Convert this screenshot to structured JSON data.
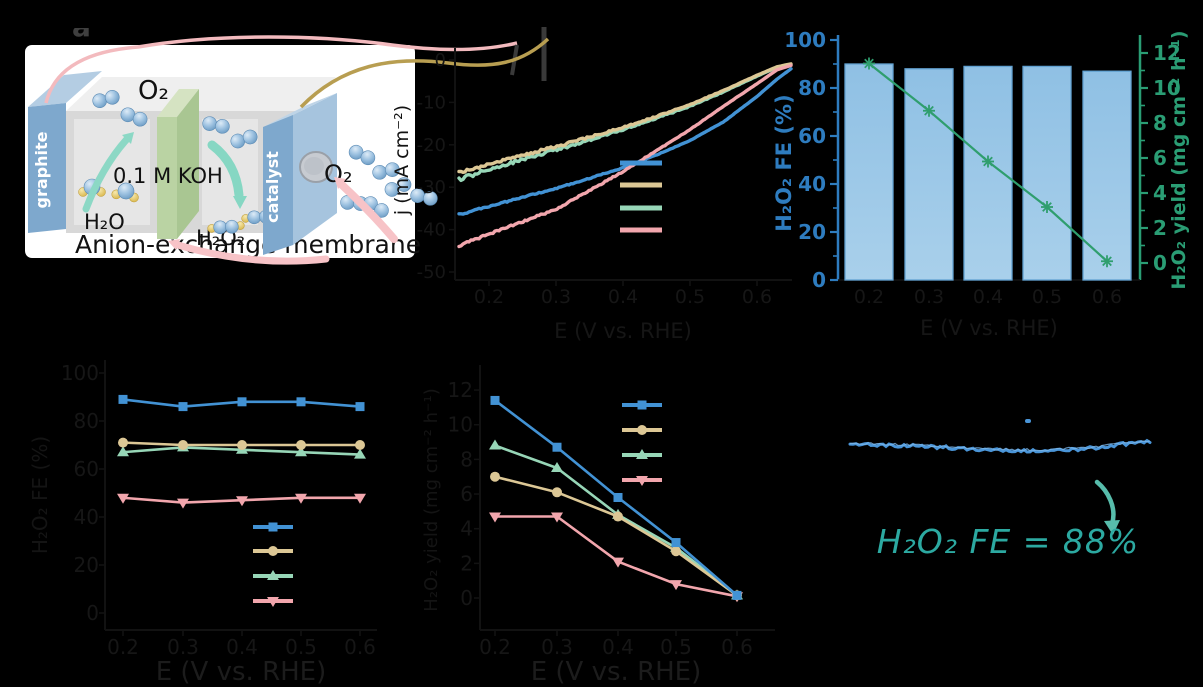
{
  "figure": {
    "panel_label_a": "a",
    "background": "#000000"
  },
  "panel_a": {
    "electrode_left": "graphite",
    "electrode_right": "catalyst",
    "gas_top": "O₂",
    "gas_inlet": "O₂",
    "electrolyte": "0.1 M KOH",
    "water": "H₂O",
    "product": "H₂O₂",
    "membrane_label": "Anion-exchange membrane",
    "colors": {
      "electrode_front": "#7ea8cd",
      "electrode_top": "#b4cde3",
      "electrode_side": "#a6c4de",
      "membrane_front": "#bad3a3",
      "chamber": "#d8d8d8",
      "wire_left": "#f3babe",
      "wire_right": "#b89e51",
      "arrow_teal": "#8cd8c5",
      "arrow_pink": "#f7c3c7"
    }
  },
  "chart_data": [
    {
      "id": "b",
      "type": "line",
      "xlabel": "E (V vs. RHE)",
      "ylabel": "j (mA cm⁻²)",
      "xlim": [
        0.15,
        0.66
      ],
      "ylim": [
        -52,
        2
      ],
      "xticks": [
        "0.2",
        "0.3",
        "0.4",
        "0.5",
        "0.6"
      ],
      "yticks": [
        "0",
        "-10",
        "-20",
        "-30",
        "-40",
        "-50"
      ],
      "x": [
        0.155,
        0.2,
        0.25,
        0.3,
        0.35,
        0.4,
        0.45,
        0.5,
        0.55,
        0.6,
        0.63,
        0.66
      ],
      "series": [
        {
          "name": "",
          "color": "#4292d4",
          "marker": "none",
          "values": [
            -36.5,
            -34.5,
            -32.4,
            -30.3,
            -27.9,
            -25.4,
            -22.4,
            -19.0,
            -14.6,
            -8.6,
            -4.5,
            -1.0
          ]
        },
        {
          "name": "",
          "color": "#dcc795",
          "marker": "none",
          "values": [
            -26.6,
            -24.6,
            -22.5,
            -20.4,
            -18.2,
            -15.9,
            -13.3,
            -10.5,
            -7.2,
            -3.6,
            -1.6,
            -0.6
          ]
        },
        {
          "name": "",
          "color": "#97d6b7",
          "marker": "none",
          "values": [
            -28.2,
            -25.8,
            -23.5,
            -21.2,
            -18.9,
            -16.4,
            -13.7,
            -10.9,
            -7.5,
            -3.8,
            -1.7,
            -0.7
          ]
        },
        {
          "name": "",
          "color": "#f2a6ad",
          "marker": "none",
          "values": [
            -43.8,
            -41.0,
            -38.1,
            -35.2,
            -30.8,
            -26.3,
            -21.4,
            -16.4,
            -10.9,
            -5.6,
            -2.3,
            -0.8
          ]
        }
      ],
      "legend_position": "center-right",
      "grid": false
    },
    {
      "id": "c",
      "type": "bar",
      "categories": [
        "0.2",
        "0.3",
        "0.4",
        "0.5",
        "0.6"
      ],
      "xlabel": "E (V vs. RHE)",
      "ylabel_left": "H₂O₂ FE (%)",
      "ylabel_right": "H₂O₂ yield (mg cm⁻² h⁻¹)",
      "ylim_left": [
        0,
        100
      ],
      "ylim_right": [
        0,
        13
      ],
      "yticks_left": [
        0,
        20,
        40,
        60,
        80,
        100
      ],
      "yticks_right": [
        0,
        2,
        4,
        6,
        8,
        10,
        12
      ],
      "fe_values": [
        90,
        88,
        89,
        89,
        87
      ],
      "yield_values": [
        11.4,
        8.7,
        5.8,
        3.2,
        0.1
      ],
      "bar_color": "#97c5e7",
      "bar_stroke": "#62a2d2",
      "line_color": "#2f9e6e",
      "axis_left_color": "#2e7cbf",
      "axis_right_color": "#2a9d74",
      "grid": false
    },
    {
      "id": "d",
      "type": "line",
      "xlabel": "E (V vs. RHE)",
      "ylabel": "H₂O₂ FE (%)",
      "xticks": [
        "0.2",
        "0.3",
        "0.4",
        "0.5",
        "0.6"
      ],
      "yticks": [
        0,
        20,
        40,
        60,
        80,
        100
      ],
      "ylim": [
        0,
        100
      ],
      "series": [
        {
          "name": "",
          "color": "#4292d4",
          "marker": "square",
          "values": [
            89,
            86,
            88,
            88,
            86
          ]
        },
        {
          "name": "",
          "color": "#dcc795",
          "marker": "circle",
          "values": [
            71,
            70,
            70,
            70,
            70
          ]
        },
        {
          "name": "",
          "color": "#97d6b7",
          "marker": "triangle-up",
          "values": [
            67,
            69,
            68,
            67,
            66
          ]
        },
        {
          "name": "",
          "color": "#f2a6ad",
          "marker": "triangle-down",
          "values": [
            48,
            46,
            47,
            48,
            48
          ]
        }
      ],
      "legend_position": "lower-right",
      "grid": false
    },
    {
      "id": "e",
      "type": "line",
      "xlabel": "E (V vs. RHE)",
      "ylabel": "H₂O₂ yield (mg cm⁻² h⁻¹)",
      "xticks": [
        "0.2",
        "0.3",
        "0.4",
        "0.5",
        "0.6"
      ],
      "yticks": [
        0,
        2,
        4,
        6,
        8,
        10,
        12
      ],
      "ylim": [
        0,
        12.5
      ],
      "series": [
        {
          "name": "",
          "color": "#4292d4",
          "marker": "square",
          "values": [
            11.4,
            8.7,
            5.8,
            3.2,
            0.15
          ]
        },
        {
          "name": "",
          "color": "#dcc795",
          "marker": "circle",
          "values": [
            7.0,
            6.1,
            4.7,
            2.7,
            0.15
          ]
        },
        {
          "name": "",
          "color": "#97d6b7",
          "marker": "triangle-up",
          "values": [
            8.8,
            7.5,
            4.8,
            2.9,
            0.15
          ]
        },
        {
          "name": "",
          "color": "#f2a6ad",
          "marker": "triangle-down",
          "values": [
            4.7,
            4.7,
            2.1,
            0.8,
            0.1
          ]
        }
      ],
      "legend_position": "upper-right",
      "grid": false
    },
    {
      "id": "f",
      "type": "line",
      "annotation": "H₂O₂ FE = 88%",
      "annotation_color": "#2ca9a1",
      "arrow_color": "#57bcab",
      "series": [
        {
          "name": "",
          "color": "#4a95d8",
          "marker": "none",
          "description": "stable chronoamperometry current"
        }
      ],
      "grid": false
    }
  ]
}
